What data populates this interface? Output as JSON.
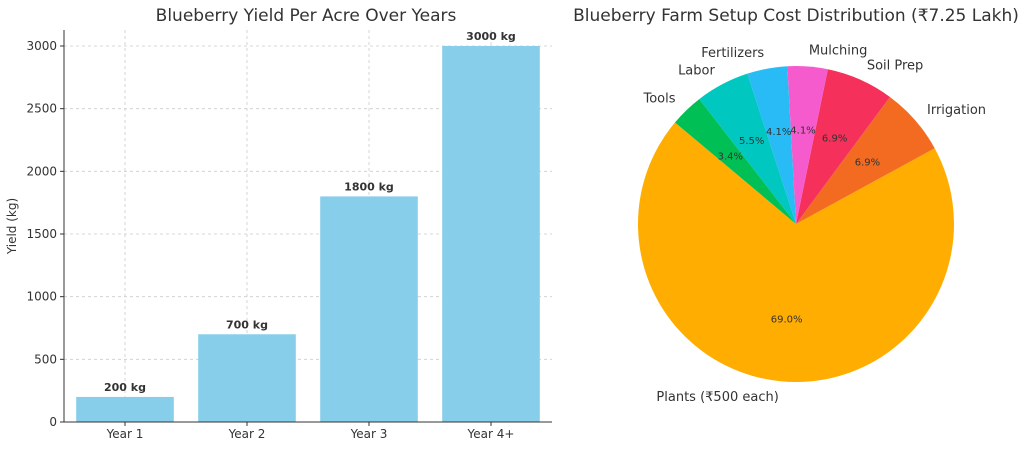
{
  "chart_data": [
    {
      "type": "bar",
      "title": "Blueberry Yield Per Acre Over Years",
      "xlabel": "",
      "ylabel": "Yield (kg)",
      "categories": [
        "Year 1",
        "Year 2",
        "Year 3",
        "Year 4+"
      ],
      "values": [
        200,
        700,
        1800,
        3000
      ],
      "data_labels": [
        "200 kg",
        "700 kg",
        "1800 kg",
        "3000 kg"
      ],
      "ylim": [
        0,
        3000
      ],
      "yticks": [
        0,
        500,
        1000,
        1500,
        2000,
        2500,
        3000
      ],
      "grid": true,
      "bar_color": "#87ceeb"
    },
    {
      "type": "pie",
      "title": "Blueberry Farm Setup Cost Distribution (₹7.25 Lakh)",
      "slices": [
        {
          "label": "Plants (₹500 each)",
          "value": 69.0,
          "pct_label": "69.0%",
          "color": "#ffad00"
        },
        {
          "label": "Irrigation",
          "value": 6.9,
          "pct_label": "6.9%",
          "color": "#f26b21"
        },
        {
          "label": "Soil Prep",
          "value": 6.9,
          "pct_label": "6.9%",
          "color": "#f5305a"
        },
        {
          "label": "Mulching",
          "value": 4.1,
          "pct_label": "4.1%",
          "color": "#f65bcd"
        },
        {
          "label": "Fertilizers",
          "value": 4.1,
          "pct_label": "4.1%",
          "color": "#29bbf5"
        },
        {
          "label": "Labor",
          "value": 5.5,
          "pct_label": "5.5%",
          "color": "#00c7c0"
        },
        {
          "label": "Tools",
          "value": 3.4,
          "pct_label": "3.4%",
          "color": "#00bf55"
        }
      ],
      "legend": "none"
    }
  ]
}
